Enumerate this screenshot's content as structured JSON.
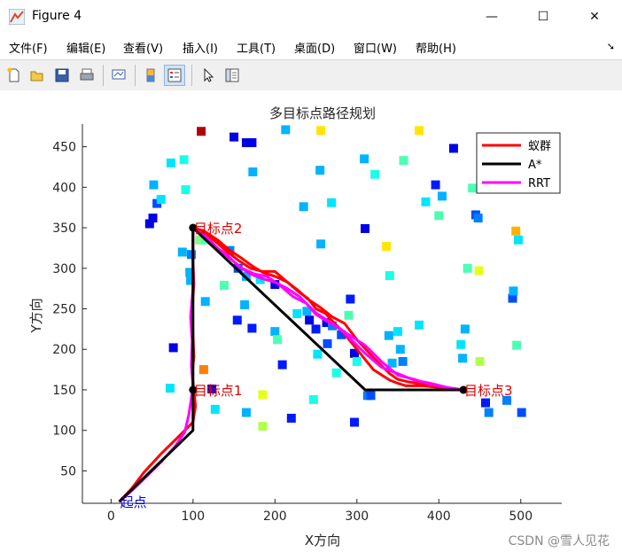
{
  "window": {
    "title": "Figure 4",
    "controls": {
      "minimize": "—",
      "maximize": "☐",
      "close": "✕"
    }
  },
  "menubar": {
    "items": [
      "文件(F)",
      "编辑(E)",
      "查看(V)",
      "插入(I)",
      "工具(T)",
      "桌面(D)",
      "窗口(W)",
      "帮助(H)"
    ],
    "overflow_icon": "corner-arrow-icon"
  },
  "toolbar": {
    "icons": [
      "new-figure-icon",
      "open-file-icon",
      "save-icon",
      "print-icon",
      "link-plot-icon",
      "colorbar-icon",
      "legend-icon",
      "pointer-icon",
      "property-inspector-icon"
    ],
    "active": [
      "legend-icon"
    ]
  },
  "watermark": "CSDN @雪人见花",
  "chart_data": {
    "type": "line",
    "title": "多目标点路径规划",
    "xlabel": "X方向",
    "ylabel": "Y方向",
    "xlim": [
      -35,
      550
    ],
    "ylim": [
      10,
      478
    ],
    "xticks": [
      0,
      100,
      200,
      300,
      400,
      500
    ],
    "yticks": [
      50,
      100,
      150,
      200,
      250,
      300,
      350,
      400,
      450
    ],
    "grid": false,
    "legend_position": "top-right",
    "colors": {
      "ant": "#ff0000",
      "astar": "#000000",
      "rrt": "#ff00ff",
      "label": "#e00000",
      "start_label": "#0000ff"
    },
    "series": [
      {
        "name": "蚁群",
        "color": "#ff0000",
        "x": [
          10,
          25,
          40,
          60,
          80,
          100,
          103,
          101,
          99,
          101,
          100,
          99,
          101,
          100,
          100,
          112,
          125,
          140,
          155,
          170,
          185,
          200,
          215,
          230,
          240,
          250,
          262,
          268,
          280,
          300,
          320,
          340,
          350,
          360,
          380,
          400,
          415,
          430,
          430,
          415,
          400,
          380,
          362,
          350,
          340,
          320,
          300,
          285,
          270,
          255,
          240,
          228,
          215,
          200,
          185,
          172,
          160,
          145,
          130,
          115,
          102
        ],
        "y": [
          12,
          28,
          48,
          70,
          90,
          110,
          130,
          150,
          170,
          190,
          220,
          250,
          280,
          310,
          350,
          343,
          335,
          322,
          310,
          300,
          296,
          296,
          283,
          270,
          263,
          250,
          244,
          237,
          225,
          200,
          175,
          162,
          158,
          155,
          155,
          153,
          151,
          150,
          150,
          151,
          155,
          157,
          160,
          163,
          170,
          190,
          212,
          232,
          240,
          252,
          262,
          273,
          283,
          290,
          295,
          303,
          312,
          322,
          335,
          345,
          350
        ]
      },
      {
        "name": "A*",
        "color": "#000000",
        "x": [
          10,
          100,
          100,
          100,
          100,
          310,
          430
        ],
        "y": [
          12,
          100,
          150,
          150,
          350,
          150,
          150
        ]
      },
      {
        "name": "RRT",
        "color": "#ff00ff",
        "x": [
          10,
          30,
          45,
          62,
          78,
          90,
          95,
          98,
          100,
          98,
          99,
          97,
          100,
          100,
          115,
          130,
          145,
          160,
          175,
          190,
          205,
          222,
          238,
          250,
          263,
          275,
          285,
          293,
          310,
          330,
          350,
          370,
          390,
          410,
          430,
          415,
          400,
          385,
          370,
          350,
          330,
          310,
          290,
          270,
          250,
          240,
          230,
          215,
          200,
          185,
          170,
          155,
          140,
          125,
          112,
          102
        ],
        "y": [
          12,
          30,
          45,
          62,
          80,
          98,
          120,
          140,
          155,
          180,
          210,
          240,
          275,
          350,
          340,
          325,
          312,
          300,
          293,
          290,
          280,
          265,
          257,
          243,
          235,
          228,
          220,
          212,
          195,
          178,
          170,
          162,
          158,
          153,
          150,
          152,
          155,
          158,
          163,
          168,
          185,
          205,
          218,
          232,
          245,
          255,
          265,
          275,
          283,
          287,
          293,
          303,
          318,
          328,
          340,
          348
        ]
      }
    ],
    "waypoints": [
      {
        "label": "起点",
        "x": 10,
        "y": 12
      },
      {
        "label": "目标点1",
        "x": 100,
        "y": 150
      },
      {
        "label": "目标点2",
        "x": 100,
        "y": 350
      },
      {
        "label": "目标点3",
        "x": 430,
        "y": 150
      }
    ],
    "obstacles": {
      "marker": "square",
      "colormap": "jet",
      "points": [
        [
          110,
          469,
          0.95
        ],
        [
          150,
          462,
          0.1
        ],
        [
          165,
          455,
          0.1
        ],
        [
          172,
          455,
          0.1
        ],
        [
          213,
          471,
          0.3
        ],
        [
          256,
          470,
          0.65
        ],
        [
          376,
          470,
          0.65
        ],
        [
          47,
          355,
          0.1
        ],
        [
          51,
          362,
          0.1
        ],
        [
          56,
          380,
          0.2
        ],
        [
          52,
          403,
          0.3
        ],
        [
          61,
          385,
          0.35
        ],
        [
          73,
          430,
          0.35
        ],
        [
          89,
          434,
          0.4
        ],
        [
          91,
          397,
          0.4
        ],
        [
          173,
          419,
          0.3
        ],
        [
          255,
          421,
          0.3
        ],
        [
          309,
          435,
          0.3
        ],
        [
          322,
          416,
          0.4
        ],
        [
          357,
          433,
          0.45
        ],
        [
          418,
          448,
          0.1
        ],
        [
          396,
          403,
          0.15
        ],
        [
          404,
          389,
          0.3
        ],
        [
          441,
          399,
          0.45
        ],
        [
          235,
          376,
          0.3
        ],
        [
          269,
          381,
          0.35
        ],
        [
          256,
          330,
          0.3
        ],
        [
          310,
          349,
          0.1
        ],
        [
          336,
          327,
          0.65
        ],
        [
          384,
          382,
          0.35
        ],
        [
          400,
          365,
          0.45
        ],
        [
          445,
          366,
          0.2
        ],
        [
          448,
          362,
          0.25
        ],
        [
          494,
          346,
          0.7
        ],
        [
          497,
          335,
          0.35
        ],
        [
          87,
          320,
          0.3
        ],
        [
          98,
          317,
          0.25
        ],
        [
          96,
          295,
          0.3
        ],
        [
          97,
          285,
          0.3
        ],
        [
          108,
          335,
          0.5
        ],
        [
          115,
          335,
          0.45
        ],
        [
          145,
          322,
          0.25
        ],
        [
          155,
          300,
          0.2
        ],
        [
          165,
          290,
          0.3
        ],
        [
          138,
          279,
          0.45
        ],
        [
          182,
          286,
          0.35
        ],
        [
          200,
          280,
          0.1
        ],
        [
          115,
          259,
          0.3
        ],
        [
          163,
          255,
          0.3
        ],
        [
          154,
          236,
          0.15
        ],
        [
          172,
          226,
          0.15
        ],
        [
          200,
          222,
          0.3
        ],
        [
          203,
          212,
          0.45
        ],
        [
          76,
          202,
          0.1
        ],
        [
          72,
          152,
          0.35
        ],
        [
          113,
          175,
          0.75
        ],
        [
          123,
          151,
          0.1
        ],
        [
          127,
          126,
          0.35
        ],
        [
          165,
          122,
          0.3
        ],
        [
          185,
          144,
          0.6
        ],
        [
          185,
          105,
          0.55
        ],
        [
          209,
          181,
          0.15
        ],
        [
          220,
          115,
          0.15
        ],
        [
          227,
          244,
          0.35
        ],
        [
          239,
          247,
          0.3
        ],
        [
          242,
          236,
          0.1
        ],
        [
          250,
          225,
          0.15
        ],
        [
          252,
          194,
          0.35
        ],
        [
          247,
          138,
          0.4
        ],
        [
          263,
          233,
          0.1
        ],
        [
          264,
          207,
          0.2
        ],
        [
          270,
          229,
          0.25
        ],
        [
          275,
          171,
          0.4
        ],
        [
          281,
          218,
          0.2
        ],
        [
          292,
          262,
          0.15
        ],
        [
          290,
          242,
          0.45
        ],
        [
          297,
          195,
          0.1
        ],
        [
          300,
          185,
          0.4
        ],
        [
          297,
          110,
          0.15
        ],
        [
          313,
          143,
          0.25
        ],
        [
          317,
          143,
          0.2
        ],
        [
          339,
          217,
          0.3
        ],
        [
          343,
          183,
          0.3
        ],
        [
          340,
          291,
          0.4
        ],
        [
          350,
          222,
          0.35
        ],
        [
          353,
          200,
          0.3
        ],
        [
          356,
          185,
          0.25
        ],
        [
          376,
          230,
          0.35
        ],
        [
          435,
          300,
          0.45
        ],
        [
          449,
          297,
          0.6
        ],
        [
          450,
          185,
          0.55
        ],
        [
          490,
          263,
          0.2
        ],
        [
          491,
          272,
          0.3
        ],
        [
          495,
          205,
          0.45
        ],
        [
          457,
          134,
          0.15
        ],
        [
          461,
          122,
          0.25
        ],
        [
          483,
          137,
          0.25
        ],
        [
          501,
          122,
          0.2
        ],
        [
          427,
          206,
          0.35
        ],
        [
          429,
          189,
          0.3
        ],
        [
          432,
          225,
          0.3
        ]
      ]
    }
  }
}
